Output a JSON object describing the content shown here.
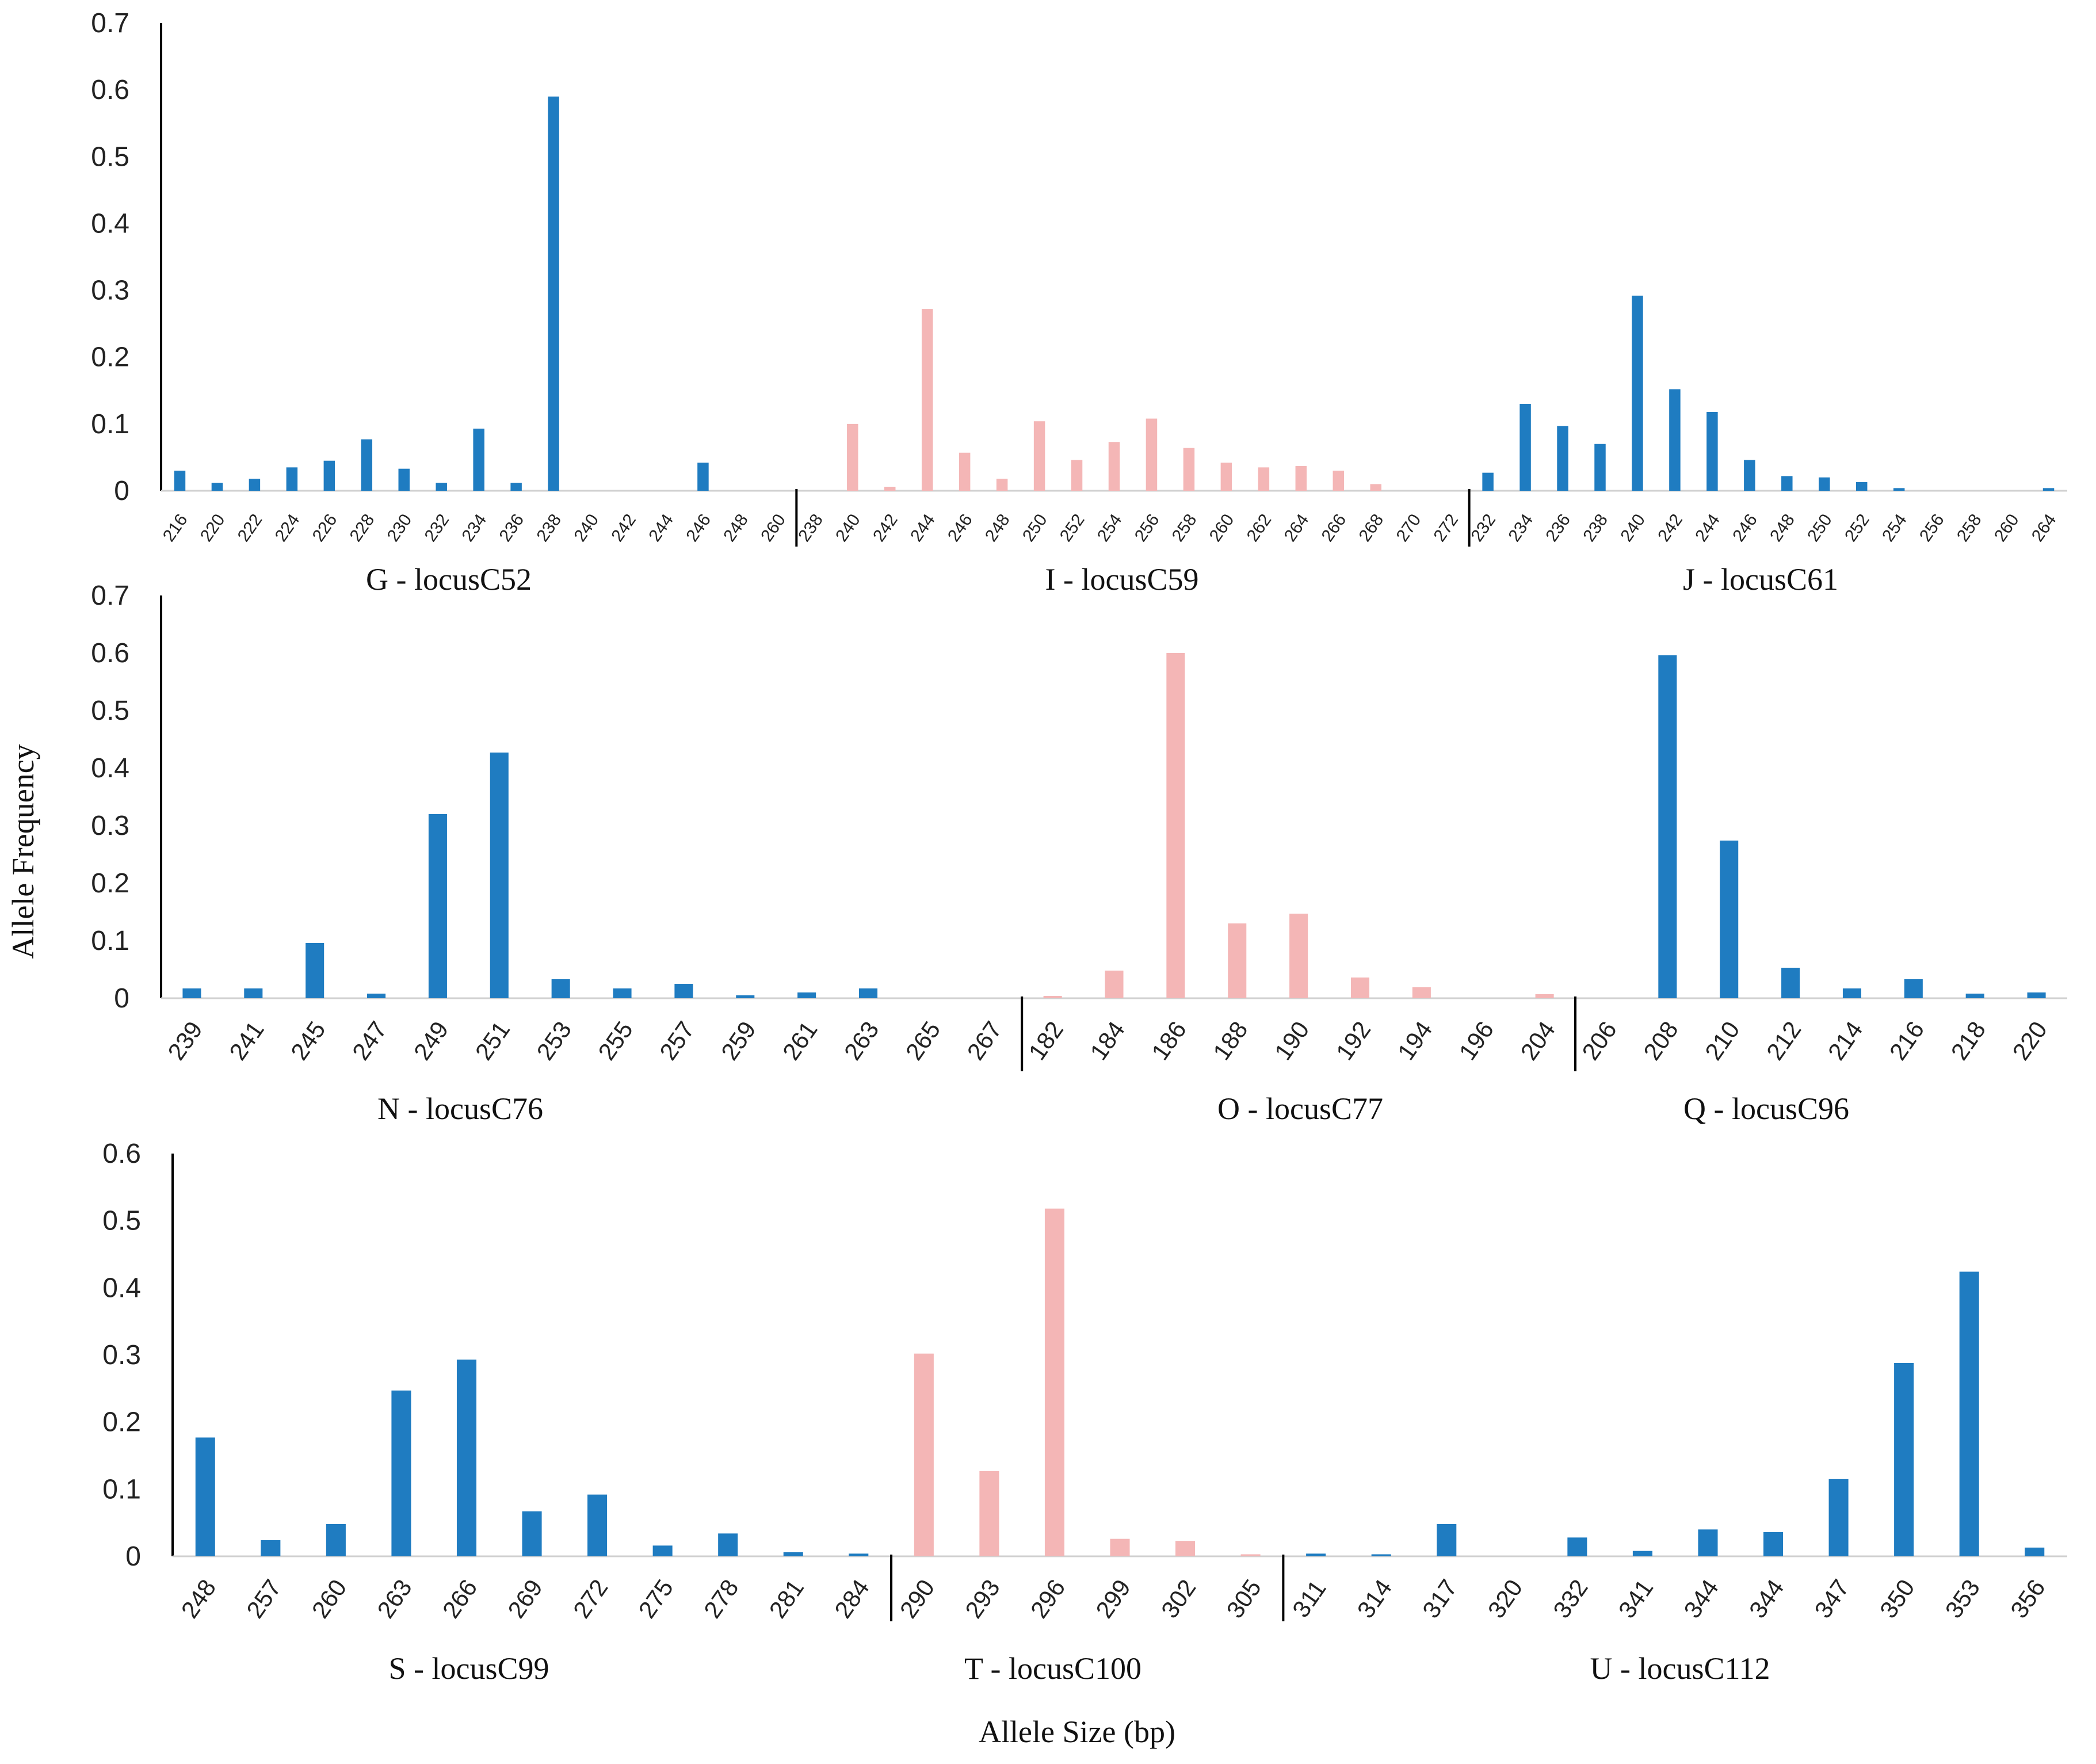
{
  "figure": {
    "ylabel": "Allele Frequency",
    "xlabel": "Allele Size (bp)",
    "colors": {
      "blue": "#1f7cc1",
      "pink": "#f4b6b6",
      "axis": "#000000"
    }
  },
  "chart_data": [
    {
      "type": "bar",
      "panel": 1,
      "ylim": [
        0,
        0.7
      ],
      "yticks": [
        "0",
        "0.1",
        "0.2",
        "0.3",
        "0.4",
        "0.5",
        "0.6",
        "0.7"
      ],
      "groups": [
        {
          "label": "G - locusC52",
          "color": "blue",
          "categories": [
            "216",
            "220",
            "222",
            "224",
            "226",
            "228",
            "230",
            "232",
            "234",
            "236",
            "238",
            "240",
            "242",
            "244",
            "246",
            "248",
            "260"
          ],
          "values": [
            0.03,
            0.012,
            0.018,
            0.035,
            0.045,
            0.077,
            0.033,
            0.012,
            0.093,
            0.012,
            0.59,
            0,
            0,
            0,
            0.042,
            0,
            0
          ]
        },
        {
          "label": "I - locusC59",
          "color": "pink",
          "categories": [
            "238",
            "240",
            "242",
            "244",
            "246",
            "248",
            "250",
            "252",
            "254",
            "256",
            "258",
            "260",
            "262",
            "264",
            "266",
            "268",
            "270",
            "272"
          ],
          "values": [
            0,
            0.1,
            0.006,
            0.272,
            0.057,
            0.018,
            0.104,
            0.046,
            0.073,
            0.108,
            0.064,
            0.042,
            0.035,
            0.037,
            0.03,
            0.01,
            0,
            0
          ]
        },
        {
          "label": "J - locusC61",
          "color": "blue",
          "categories": [
            "232",
            "234",
            "236",
            "238",
            "240",
            "242",
            "244",
            "246",
            "248",
            "250",
            "252",
            "254",
            "256",
            "258",
            "260",
            "264"
          ],
          "values": [
            0.027,
            0.13,
            0.097,
            0.07,
            0.292,
            0.152,
            0.118,
            0.046,
            0.022,
            0.02,
            0.013,
            0.004,
            0,
            0,
            0,
            0.004
          ]
        }
      ]
    },
    {
      "type": "bar",
      "panel": 2,
      "ylim": [
        0,
        0.7
      ],
      "yticks": [
        "0",
        "0.1",
        "0.2",
        "0.3",
        "0.4",
        "0.5",
        "0.6",
        "0.7"
      ],
      "groups": [
        {
          "label": "N - locusC76",
          "color": "blue",
          "categories": [
            "239",
            "241",
            "245",
            "247",
            "249",
            "251",
            "253",
            "255",
            "257",
            "259",
            "261",
            "263",
            "265",
            "267"
          ],
          "values": [
            0.017,
            0.017,
            0.096,
            0.008,
            0.32,
            0.427,
            0.033,
            0.017,
            0.025,
            0.005,
            0.01,
            0.017,
            0,
            0
          ]
        },
        {
          "label": "O - locusC77",
          "color": "pink",
          "categories": [
            "182",
            "184",
            "186",
            "188",
            "190",
            "192",
            "194",
            "196",
            "204"
          ],
          "values": [
            0.004,
            0.048,
            0.6,
            0.13,
            0.147,
            0.036,
            0.019,
            0,
            0.007
          ]
        },
        {
          "label": "Q - locusC96",
          "color": "blue",
          "categories": [
            "206",
            "208",
            "210",
            "212",
            "214",
            "216",
            "218",
            "220"
          ],
          "values": [
            0,
            0.596,
            0.274,
            0.053,
            0.017,
            0.033,
            0.008,
            0.01
          ]
        }
      ]
    },
    {
      "type": "bar",
      "panel": 3,
      "ylim": [
        0,
        0.6
      ],
      "yticks": [
        "0",
        "0.1",
        "0.2",
        "0.3",
        "0.4",
        "0.5",
        "0.6"
      ],
      "groups": [
        {
          "label": "S - locusC99",
          "color": "blue",
          "categories": [
            "248",
            "257",
            "260",
            "263",
            "266",
            "269",
            "272",
            "275",
            "278",
            "281",
            "284"
          ],
          "values": [
            0.177,
            0.024,
            0.048,
            0.247,
            0.293,
            0.067,
            0.092,
            0.016,
            0.034,
            0.006,
            0.004
          ]
        },
        {
          "label": "T - locusC100",
          "color": "pink",
          "categories": [
            "290",
            "293",
            "296",
            "299",
            "302",
            "305"
          ],
          "values": [
            0.302,
            0.127,
            0.518,
            0.026,
            0.023,
            0.003
          ]
        },
        {
          "label": "U - locusC112",
          "color": "blue",
          "categories": [
            "311",
            "314",
            "317",
            "320",
            "332",
            "341",
            "344",
            "344",
            "347",
            "350",
            "353",
            "356"
          ],
          "values": [
            0.004,
            0.003,
            0.048,
            0,
            0.028,
            0.008,
            0.04,
            0.036,
            0.115,
            0.288,
            0.424,
            0.013
          ]
        }
      ]
    }
  ]
}
